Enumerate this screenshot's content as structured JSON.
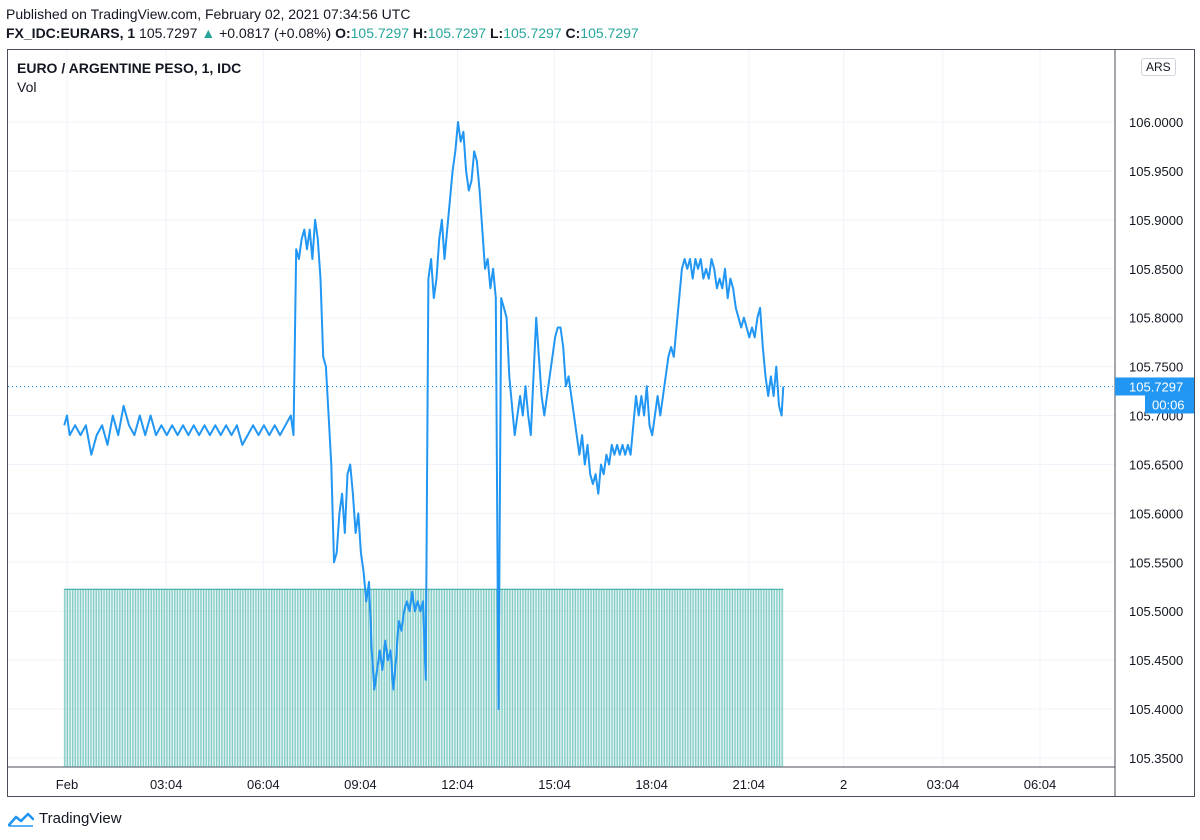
{
  "header": {
    "published": "Published on TradingView.com, February 02, 2021 07:34:56 UTC",
    "symbol": "FX_IDC:EURARS, 1",
    "last": "105.7297",
    "change_arrow": "▲",
    "change": "+0.0817 (+0.08%)",
    "o_label": "O:",
    "o_value": "105.7297",
    "h_label": "H:",
    "h_value": "105.7297",
    "l_label": "L:",
    "l_value": "105.7297",
    "c_label": "C:",
    "c_value": "105.7297"
  },
  "legend": {
    "title": "EURO / ARGENTINE PESO, 1, IDC",
    "volume": "Vol"
  },
  "currency_badge": "ARS",
  "footer": {
    "brand": "TradingView",
    "logo_icon": "tradingview-logo-icon"
  },
  "colors": {
    "line": "#2196f3",
    "volume": "#26a69a",
    "price_label": "#2196f3",
    "grid": "#f0f3fa"
  },
  "chart_data": {
    "type": "line",
    "title": "EURO / ARGENTINE PESO, 1, IDC",
    "ylim": [
      105.34,
      106.06
    ],
    "y_ticks": [
      "106.0000",
      "105.9500",
      "105.9000",
      "105.8500",
      "105.8000",
      "105.7500",
      "105.7000",
      "105.6500",
      "105.6000",
      "105.5500",
      "105.5000",
      "105.4500",
      "105.4000",
      "105.3500"
    ],
    "x_ticks": [
      "Feb",
      "03:04",
      "06:04",
      "09:04",
      "12:04",
      "15:04",
      "18:04",
      "21:04",
      "2",
      "03:04",
      "06:04"
    ],
    "x_tick_minutes": [
      0,
      184,
      364,
      544,
      724,
      904,
      1084,
      1264,
      1440,
      1624,
      1804
    ],
    "current_price": "105.7297",
    "countdown": "00:06",
    "grid": true,
    "series": [
      {
        "values": [
          [
            -5,
            105.69
          ],
          [
            0,
            105.7
          ],
          [
            5,
            105.68
          ],
          [
            15,
            105.69
          ],
          [
            25,
            105.68
          ],
          [
            35,
            105.69
          ],
          [
            45,
            105.66
          ],
          [
            55,
            105.68
          ],
          [
            65,
            105.69
          ],
          [
            75,
            105.67
          ],
          [
            85,
            105.7
          ],
          [
            95,
            105.68
          ],
          [
            105,
            105.71
          ],
          [
            115,
            105.69
          ],
          [
            125,
            105.68
          ],
          [
            135,
            105.7
          ],
          [
            145,
            105.68
          ],
          [
            155,
            105.7
          ],
          [
            165,
            105.68
          ],
          [
            175,
            105.69
          ],
          [
            185,
            105.68
          ],
          [
            195,
            105.69
          ],
          [
            205,
            105.68
          ],
          [
            215,
            105.69
          ],
          [
            225,
            105.68
          ],
          [
            235,
            105.69
          ],
          [
            245,
            105.68
          ],
          [
            255,
            105.69
          ],
          [
            265,
            105.68
          ],
          [
            275,
            105.69
          ],
          [
            285,
            105.68
          ],
          [
            295,
            105.69
          ],
          [
            305,
            105.68
          ],
          [
            315,
            105.69
          ],
          [
            325,
            105.67
          ],
          [
            335,
            105.68
          ],
          [
            345,
            105.69
          ],
          [
            355,
            105.68
          ],
          [
            365,
            105.69
          ],
          [
            375,
            105.68
          ],
          [
            385,
            105.69
          ],
          [
            395,
            105.68
          ],
          [
            405,
            105.69
          ],
          [
            415,
            105.7
          ],
          [
            420,
            105.68
          ],
          [
            425,
            105.87
          ],
          [
            430,
            105.86
          ],
          [
            435,
            105.88
          ],
          [
            440,
            105.89
          ],
          [
            445,
            105.87
          ],
          [
            450,
            105.89
          ],
          [
            455,
            105.86
          ],
          [
            460,
            105.9
          ],
          [
            465,
            105.88
          ],
          [
            470,
            105.84
          ],
          [
            475,
            105.76
          ],
          [
            480,
            105.75
          ],
          [
            485,
            105.7
          ],
          [
            490,
            105.65
          ],
          [
            495,
            105.55
          ],
          [
            500,
            105.56
          ],
          [
            505,
            105.6
          ],
          [
            510,
            105.62
          ],
          [
            515,
            105.58
          ],
          [
            520,
            105.64
          ],
          [
            525,
            105.65
          ],
          [
            530,
            105.62
          ],
          [
            535,
            105.58
          ],
          [
            540,
            105.6
          ],
          [
            545,
            105.56
          ],
          [
            550,
            105.54
          ],
          [
            555,
            105.51
          ],
          [
            560,
            105.53
          ],
          [
            565,
            105.46
          ],
          [
            570,
            105.42
          ],
          [
            575,
            105.44
          ],
          [
            580,
            105.46
          ],
          [
            585,
            105.44
          ],
          [
            590,
            105.47
          ],
          [
            595,
            105.45
          ],
          [
            600,
            105.46
          ],
          [
            605,
            105.42
          ],
          [
            610,
            105.45
          ],
          [
            615,
            105.49
          ],
          [
            620,
            105.48
          ],
          [
            625,
            105.5
          ],
          [
            630,
            105.51
          ],
          [
            635,
            105.5
          ],
          [
            640,
            105.52
          ],
          [
            645,
            105.5
          ],
          [
            650,
            105.51
          ],
          [
            655,
            105.5
          ],
          [
            660,
            105.51
          ],
          [
            665,
            105.43
          ],
          [
            670,
            105.84
          ],
          [
            675,
            105.86
          ],
          [
            680,
            105.82
          ],
          [
            685,
            105.84
          ],
          [
            690,
            105.88
          ],
          [
            695,
            105.9
          ],
          [
            700,
            105.86
          ],
          [
            705,
            105.89
          ],
          [
            710,
            105.92
          ],
          [
            715,
            105.95
          ],
          [
            720,
            105.97
          ],
          [
            725,
            106.0
          ],
          [
            730,
            105.98
          ],
          [
            735,
            105.99
          ],
          [
            740,
            105.95
          ],
          [
            745,
            105.93
          ],
          [
            750,
            105.94
          ],
          [
            755,
            105.97
          ],
          [
            760,
            105.96
          ],
          [
            765,
            105.93
          ],
          [
            770,
            105.89
          ],
          [
            775,
            105.85
          ],
          [
            780,
            105.86
          ],
          [
            785,
            105.83
          ],
          [
            790,
            105.85
          ],
          [
            795,
            105.82
          ],
          [
            800,
            105.4
          ],
          [
            805,
            105.82
          ],
          [
            810,
            105.81
          ],
          [
            815,
            105.8
          ],
          [
            820,
            105.74
          ],
          [
            825,
            105.71
          ],
          [
            830,
            105.68
          ],
          [
            835,
            105.7
          ],
          [
            840,
            105.72
          ],
          [
            845,
            105.7
          ],
          [
            850,
            105.73
          ],
          [
            855,
            105.7
          ],
          [
            860,
            105.68
          ],
          [
            865,
            105.74
          ],
          [
            870,
            105.8
          ],
          [
            875,
            105.76
          ],
          [
            880,
            105.72
          ],
          [
            885,
            105.7
          ],
          [
            890,
            105.72
          ],
          [
            895,
            105.74
          ],
          [
            900,
            105.76
          ],
          [
            905,
            105.78
          ],
          [
            910,
            105.79
          ],
          [
            915,
            105.79
          ],
          [
            920,
            105.77
          ],
          [
            925,
            105.73
          ],
          [
            930,
            105.74
          ],
          [
            935,
            105.72
          ],
          [
            940,
            105.7
          ],
          [
            945,
            105.68
          ],
          [
            950,
            105.66
          ],
          [
            955,
            105.68
          ],
          [
            960,
            105.65
          ],
          [
            965,
            105.67
          ],
          [
            970,
            105.64
          ],
          [
            975,
            105.63
          ],
          [
            980,
            105.64
          ],
          [
            985,
            105.62
          ],
          [
            990,
            105.65
          ],
          [
            995,
            105.64
          ],
          [
            1000,
            105.66
          ],
          [
            1005,
            105.65
          ],
          [
            1010,
            105.67
          ],
          [
            1015,
            105.66
          ],
          [
            1020,
            105.67
          ],
          [
            1025,
            105.66
          ],
          [
            1030,
            105.67
          ],
          [
            1035,
            105.66
          ],
          [
            1040,
            105.67
          ],
          [
            1045,
            105.66
          ],
          [
            1050,
            105.69
          ],
          [
            1055,
            105.72
          ],
          [
            1060,
            105.7
          ],
          [
            1065,
            105.72
          ],
          [
            1070,
            105.7
          ],
          [
            1075,
            105.73
          ],
          [
            1080,
            105.69
          ],
          [
            1085,
            105.68
          ],
          [
            1090,
            105.7
          ],
          [
            1095,
            105.72
          ],
          [
            1100,
            105.7
          ],
          [
            1105,
            105.72
          ],
          [
            1110,
            105.74
          ],
          [
            1115,
            105.76
          ],
          [
            1120,
            105.77
          ],
          [
            1125,
            105.76
          ],
          [
            1130,
            105.79
          ],
          [
            1135,
            105.82
          ],
          [
            1140,
            105.85
          ],
          [
            1145,
            105.86
          ],
          [
            1150,
            105.85
          ],
          [
            1155,
            105.86
          ],
          [
            1160,
            105.84
          ],
          [
            1165,
            105.86
          ],
          [
            1170,
            105.85
          ],
          [
            1175,
            105.86
          ],
          [
            1180,
            105.84
          ],
          [
            1185,
            105.85
          ],
          [
            1190,
            105.84
          ],
          [
            1195,
            105.86
          ],
          [
            1200,
            105.85
          ],
          [
            1205,
            105.83
          ],
          [
            1210,
            105.84
          ],
          [
            1215,
            105.83
          ],
          [
            1220,
            105.85
          ],
          [
            1225,
            105.82
          ],
          [
            1230,
            105.84
          ],
          [
            1235,
            105.83
          ],
          [
            1240,
            105.81
          ],
          [
            1245,
            105.8
          ],
          [
            1250,
            105.79
          ],
          [
            1255,
            105.8
          ],
          [
            1260,
            105.79
          ],
          [
            1265,
            105.78
          ],
          [
            1270,
            105.79
          ],
          [
            1275,
            105.78
          ],
          [
            1280,
            105.8
          ],
          [
            1285,
            105.81
          ],
          [
            1290,
            105.77
          ],
          [
            1295,
            105.74
          ],
          [
            1300,
            105.72
          ],
          [
            1305,
            105.74
          ],
          [
            1310,
            105.72
          ],
          [
            1315,
            105.75
          ],
          [
            1320,
            105.71
          ],
          [
            1325,
            105.7
          ],
          [
            1328,
            105.7297
          ]
        ]
      }
    ],
    "volume": {
      "label": "Vol",
      "level": 105.5225,
      "bars_from_minute": -5,
      "bars_to_minute": 1328
    }
  }
}
